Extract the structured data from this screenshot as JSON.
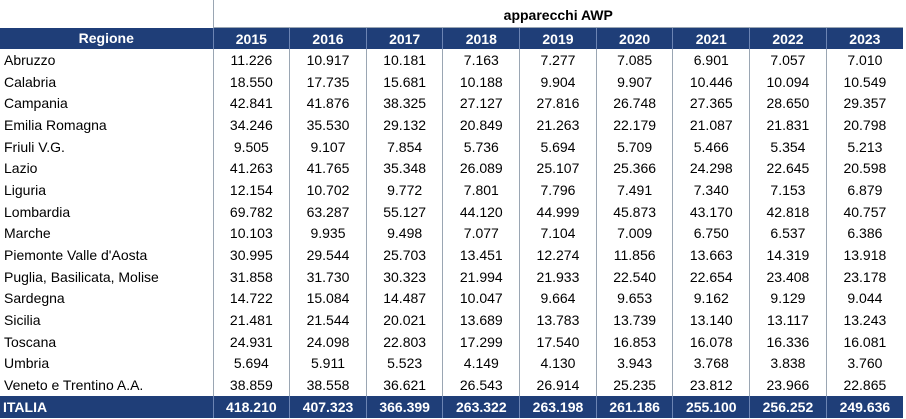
{
  "group_title": "apparecchi AWP",
  "region_header": "Regione",
  "years": [
    "2015",
    "2016",
    "2017",
    "2018",
    "2019",
    "2020",
    "2021",
    "2022",
    "2023"
  ],
  "rows": [
    {
      "region": "Abruzzo",
      "values": [
        "11.226",
        "10.917",
        "10.181",
        "7.163",
        "7.277",
        "7.085",
        "6.901",
        "7.057",
        "7.010"
      ]
    },
    {
      "region": "Calabria",
      "values": [
        "18.550",
        "17.735",
        "15.681",
        "10.188",
        "9.904",
        "9.907",
        "10.446",
        "10.094",
        "10.549"
      ]
    },
    {
      "region": "Campania",
      "values": [
        "42.841",
        "41.876",
        "38.325",
        "27.127",
        "27.816",
        "26.748",
        "27.365",
        "28.650",
        "29.357"
      ]
    },
    {
      "region": "Emilia Romagna",
      "values": [
        "34.246",
        "35.530",
        "29.132",
        "20.849",
        "21.263",
        "22.179",
        "21.087",
        "21.831",
        "20.798"
      ]
    },
    {
      "region": "Friuli V.G.",
      "values": [
        "9.505",
        "9.107",
        "7.854",
        "5.736",
        "5.694",
        "5.709",
        "5.466",
        "5.354",
        "5.213"
      ]
    },
    {
      "region": "Lazio",
      "values": [
        "41.263",
        "41.765",
        "35.348",
        "26.089",
        "25.107",
        "25.366",
        "24.298",
        "22.645",
        "20.598"
      ]
    },
    {
      "region": "Liguria",
      "values": [
        "12.154",
        "10.702",
        "9.772",
        "7.801",
        "7.796",
        "7.491",
        "7.340",
        "7.153",
        "6.879"
      ]
    },
    {
      "region": "Lombardia",
      "values": [
        "69.782",
        "63.287",
        "55.127",
        "44.120",
        "44.999",
        "45.873",
        "43.170",
        "42.818",
        "40.757"
      ]
    },
    {
      "region": "Marche",
      "values": [
        "10.103",
        "9.935",
        "9.498",
        "7.077",
        "7.104",
        "7.009",
        "6.750",
        "6.537",
        "6.386"
      ]
    },
    {
      "region": "Piemonte Valle d'Aosta",
      "values": [
        "30.995",
        "29.544",
        "25.703",
        "13.451",
        "12.274",
        "11.856",
        "13.663",
        "14.319",
        "13.918"
      ]
    },
    {
      "region": "Puglia, Basilicata, Molise",
      "values": [
        "31.858",
        "31.730",
        "30.323",
        "21.994",
        "21.933",
        "22.540",
        "22.654",
        "23.408",
        "23.178"
      ]
    },
    {
      "region": "Sardegna",
      "values": [
        "14.722",
        "15.084",
        "14.487",
        "10.047",
        "9.664",
        "9.653",
        "9.162",
        "9.129",
        "9.044"
      ]
    },
    {
      "region": "Sicilia",
      "values": [
        "21.481",
        "21.544",
        "20.021",
        "13.689",
        "13.783",
        "13.739",
        "13.140",
        "13.117",
        "13.243"
      ]
    },
    {
      "region": "Toscana",
      "values": [
        "24.931",
        "24.098",
        "22.803",
        "17.299",
        "17.540",
        "16.853",
        "16.078",
        "16.336",
        "16.081"
      ]
    },
    {
      "region": "Umbria",
      "values": [
        "5.694",
        "5.911",
        "5.523",
        "4.149",
        "4.130",
        "3.943",
        "3.768",
        "3.838",
        "3.760"
      ]
    },
    {
      "region": "Veneto e Trentino A.A.",
      "values": [
        "38.859",
        "38.558",
        "36.621",
        "26.543",
        "26.914",
        "25.235",
        "23.812",
        "23.966",
        "22.865"
      ]
    }
  ],
  "total": {
    "region": "ITALIA",
    "values": [
      "418.210",
      "407.323",
      "366.399",
      "263.322",
      "263.198",
      "261.186",
      "255.100",
      "256.252",
      "249.636"
    ]
  },
  "colors": {
    "header_bg": "#1f3e78",
    "header_text": "#ffffff",
    "grid": "#9aa6b3"
  }
}
